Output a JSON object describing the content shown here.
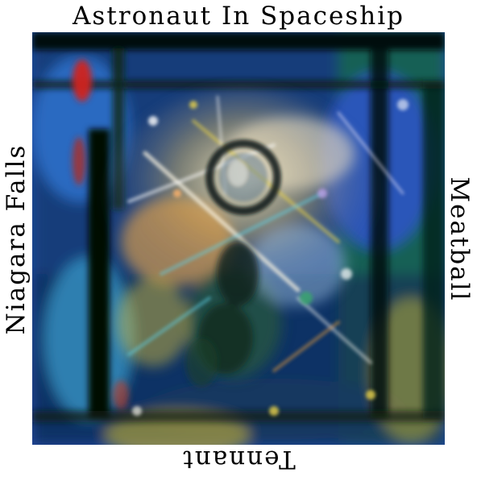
{
  "labels": {
    "top": "Astronaut In Spaceship",
    "bottom": "Tennant",
    "left": "Niagara Falls",
    "right": "Meatball"
  },
  "palette": {
    "background": "#ffffff",
    "deep_blue": "#1b3f9e",
    "dark_green": "#0e3d22",
    "cyan": "#5fd0e6",
    "yellow": "#e8d24a",
    "orange": "#e59a3a",
    "red": "#d0241c",
    "black": "#050806",
    "white": "#f6f6f0"
  }
}
